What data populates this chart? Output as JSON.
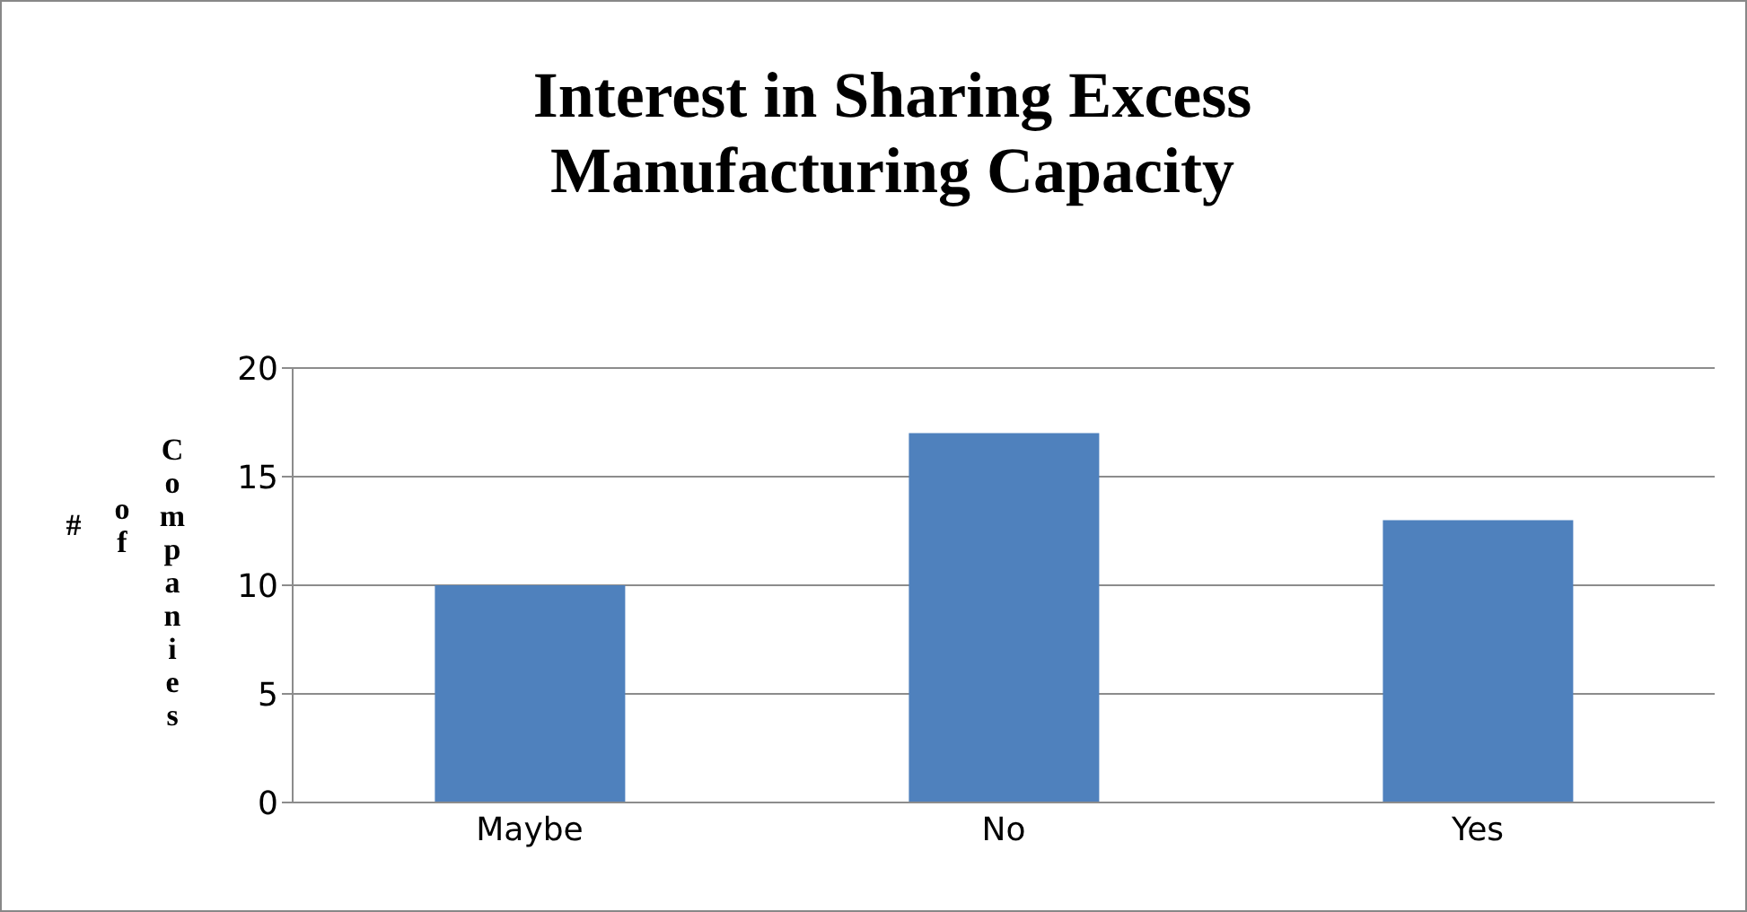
{
  "chart_data": {
    "type": "bar",
    "title": "Interest in Sharing Excess Manufacturing Capacity",
    "ylabel": "# of Companies",
    "categories": [
      "Maybe",
      "No",
      "Yes"
    ],
    "values": [
      10,
      17,
      13
    ],
    "color": "#4f81bd",
    "ylim": [
      0,
      20
    ],
    "yticks": [
      0,
      5,
      10,
      15,
      20
    ],
    "grid": "y"
  }
}
